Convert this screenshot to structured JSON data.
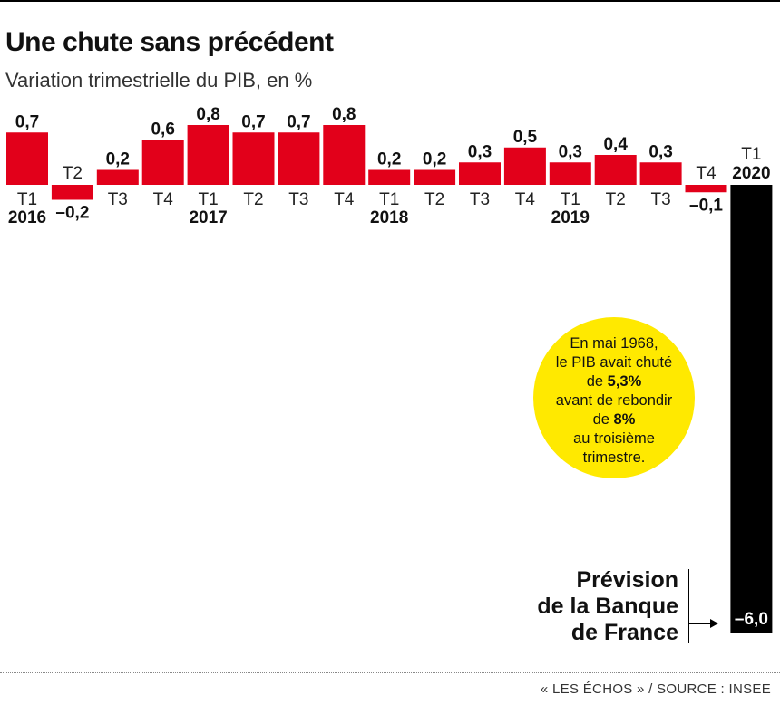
{
  "title": "Une chute sans précédent",
  "subtitle": "Variation trimestrielle du PIB, en %",
  "source": "« LES ÉCHOS » / SOURCE : INSEE",
  "note": {
    "l1": "En mai 1968,",
    "l2": "le PIB avait chuté",
    "l3a": "de ",
    "l3b": "5,3%",
    "l4": "avant de rebondir",
    "l5a": "de ",
    "l5b": "8%",
    "l6": "au troisième",
    "l7": "trimestre."
  },
  "forecast": {
    "l1": "Prévision",
    "l2": "de la Banque",
    "l3": "de France"
  },
  "colors": {
    "bar": "#e2001a",
    "forecast_bar": "#000000",
    "note_bg": "#ffe900"
  },
  "chart_data": {
    "type": "bar",
    "categories": [
      "T1",
      "T2",
      "T3",
      "T4",
      "T1",
      "T2",
      "T3",
      "T4",
      "T1",
      "T2",
      "T3",
      "T4",
      "T1",
      "T2",
      "T3",
      "T4",
      "T1"
    ],
    "years": [
      "2016",
      "",
      "",
      "",
      "2017",
      "",
      "",
      "",
      "2018",
      "",
      "",
      "",
      "2019",
      "",
      "",
      "",
      "2020"
    ],
    "values": [
      0.7,
      -0.2,
      0.2,
      0.6,
      0.8,
      0.7,
      0.7,
      0.8,
      0.2,
      0.2,
      0.3,
      0.5,
      0.3,
      0.4,
      0.3,
      -0.1,
      -6.0
    ],
    "value_labels": [
      "0,7",
      "–0,2",
      "0,2",
      "0,6",
      "0,8",
      "0,7",
      "0,7",
      "0,8",
      "0,2",
      "0,2",
      "0,3",
      "0,5",
      "0,3",
      "0,4",
      "0,3",
      "–0,1",
      "–6,0"
    ],
    "forecast_index": 16
  }
}
